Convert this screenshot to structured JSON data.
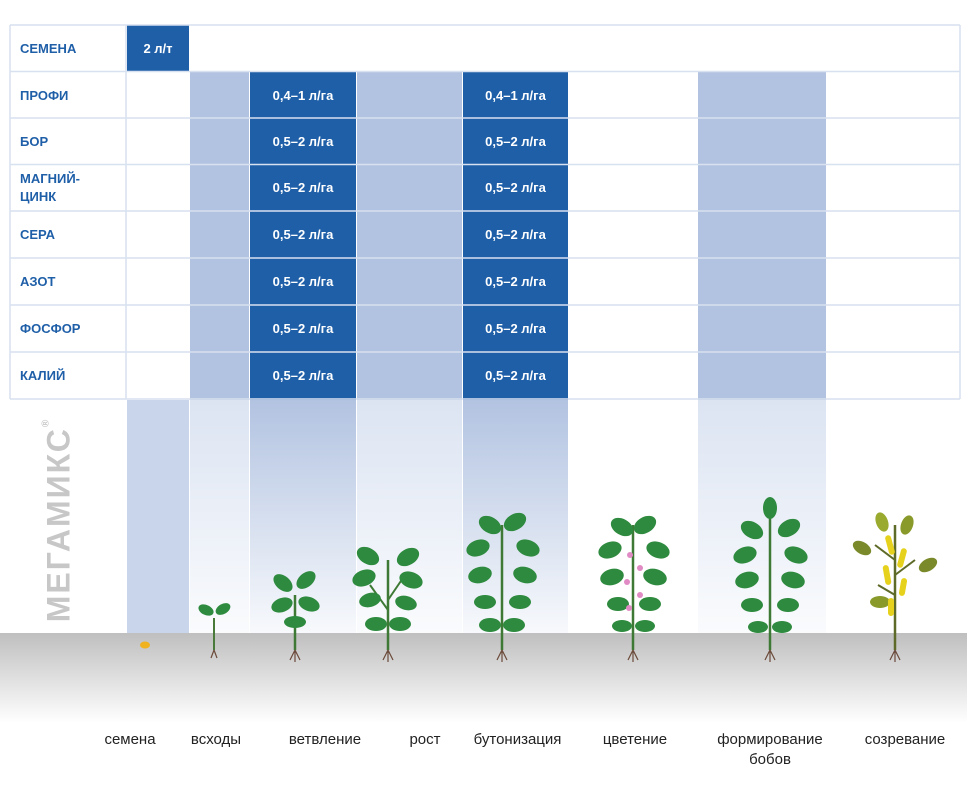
{
  "table": {
    "rows": [
      {
        "name": "СЕМЕНА",
        "doses": [
          "2 л/т"
        ]
      },
      {
        "name": "ПРОФИ",
        "doses": [
          "0,4–1 л/га",
          "0,4–1 л/га"
        ]
      },
      {
        "name": "БОР",
        "doses": [
          "0,5–2 л/га",
          "0,5–2 л/га"
        ]
      },
      {
        "name": "МАГНИЙ-\nЦИНК",
        "doses": [
          "0,5–2 л/га",
          "0,5–2 л/га"
        ]
      },
      {
        "name": "СЕРА",
        "doses": [
          "0,5–2 л/га",
          "0,5–2 л/га"
        ]
      },
      {
        "name": "АЗОТ",
        "doses": [
          "0,5–2 л/га",
          "0,5–2 л/га"
        ]
      },
      {
        "name": "ФОСФОР",
        "doses": [
          "0,5–2 л/га",
          "0,5–2 л/га"
        ]
      },
      {
        "name": "КАЛИЙ",
        "doses": [
          "0,5–2 л/га",
          "0,5–2 л/га"
        ]
      }
    ]
  },
  "brand": {
    "text": "МЕГАМИКС",
    "mark": "®"
  },
  "stages": [
    "семена",
    "всходы",
    "ветвление",
    "рост",
    "бутонизация",
    "цветение",
    "формирование\nбобов",
    "созревание"
  ],
  "colors": {
    "dose_fill": "#1f5fa8",
    "light_fill": "#b2c3e1",
    "label_text": "#1f5fa8",
    "leaf": "#2e8a3e",
    "flower": "#e08bc4",
    "pod": "#e6d21c",
    "seed": "#f0b21f",
    "soil": "#bdbdbd"
  }
}
